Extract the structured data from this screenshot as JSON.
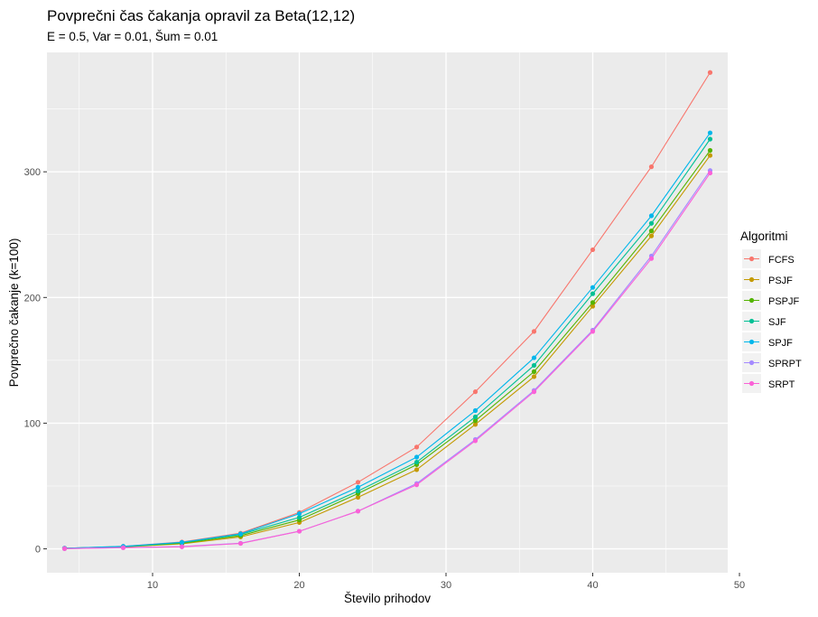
{
  "chart_data": {
    "type": "line",
    "title": "Povprečni čas čakanja opravil za Beta(12,12)",
    "subtitle": "E = 0.5, Var = 0.01, Šum = 0.01",
    "xlabel": "Število prihodov",
    "ylabel": "Povprečno čakanje (k=100)",
    "xlim": [
      2.8,
      49.2
    ],
    "ylim": [
      -19,
      395
    ],
    "x_ticks": [
      10,
      20,
      30,
      40,
      50
    ],
    "y_ticks": [
      0,
      100,
      200,
      300
    ],
    "grid": true,
    "legend_title": "Algoritmi",
    "legend_position": "right",
    "x": [
      4,
      8,
      12,
      16,
      20,
      24,
      28,
      32,
      36,
      40,
      44,
      48
    ],
    "series": [
      {
        "name": "FCFS",
        "color": "#F8766D",
        "values": [
          0.5,
          2.0,
          5.5,
          12.5,
          29,
          53,
          81,
          125,
          173,
          238,
          304,
          379
        ]
      },
      {
        "name": "PSJF",
        "color": "#C49A00",
        "values": [
          0.3,
          1.5,
          4.0,
          9.5,
          21,
          41,
          63,
          99,
          137,
          193,
          249,
          313
        ]
      },
      {
        "name": "PSPJF",
        "color": "#53B400",
        "values": [
          0.4,
          1.7,
          4.5,
          10.5,
          23,
          44,
          67,
          102,
          141,
          196,
          253,
          317
        ]
      },
      {
        "name": "SJF",
        "color": "#00C094",
        "values": [
          0.5,
          1.8,
          5.0,
          11.5,
          25,
          46,
          69,
          105,
          146,
          203,
          259,
          326
        ]
      },
      {
        "name": "SPJF",
        "color": "#00B6EB",
        "values": [
          0.5,
          2.0,
          5.2,
          12.0,
          28,
          49,
          73,
          110,
          152,
          208,
          265,
          331
        ]
      },
      {
        "name": "SPRPT",
        "color": "#A58AFF",
        "values": [
          0.2,
          1.0,
          1.8,
          4.5,
          14,
          30,
          52,
          87,
          126,
          174,
          233,
          301
        ]
      },
      {
        "name": "SRPT",
        "color": "#FB61D7",
        "values": [
          0.2,
          0.9,
          1.6,
          4.3,
          14,
          30,
          51,
          86,
          125,
          173,
          231,
          299
        ]
      }
    ]
  }
}
